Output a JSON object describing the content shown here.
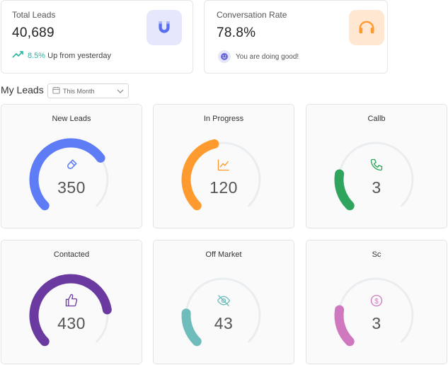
{
  "stats": {
    "total_leads": {
      "label": "Total Leads",
      "value": "40,689",
      "trend_pct": "8.5%",
      "trend_text": "Up from yesterday",
      "icon": "magnet-icon",
      "accent": "#5a6ff0"
    },
    "conversation_rate": {
      "label": "Conversation Rate",
      "value": "78.8%",
      "status_text": "You are doing good!",
      "icon": "headset-icon",
      "accent": "#ff9a2e"
    }
  },
  "section": {
    "title": "My Leads",
    "filter": {
      "value": "This Month"
    }
  },
  "gauges": [
    {
      "title": "New Leads",
      "value": "350",
      "level": 0.7,
      "color": "#5f7cf7",
      "icon": "magnet-icon"
    },
    {
      "title": "In Progress",
      "value": "120",
      "level": 0.45,
      "color": "#ff9a2e",
      "icon": "chart-line-icon"
    },
    {
      "title": "Callb",
      "value": "3",
      "level": 0.2,
      "color": "#2ea45c",
      "icon": "phone-icon"
    },
    {
      "title": "Contacted",
      "value": "430",
      "level": 0.8,
      "color": "#6b3aa0",
      "icon": "thumbs-up-icon"
    },
    {
      "title": "Off Market",
      "value": "43",
      "level": 0.18,
      "color": "#6fbcbd",
      "icon": "eye-off-icon"
    },
    {
      "title": "Sc",
      "value": "3",
      "level": 0.2,
      "color": "#cf78c0",
      "icon": "dollar-icon"
    }
  ]
}
